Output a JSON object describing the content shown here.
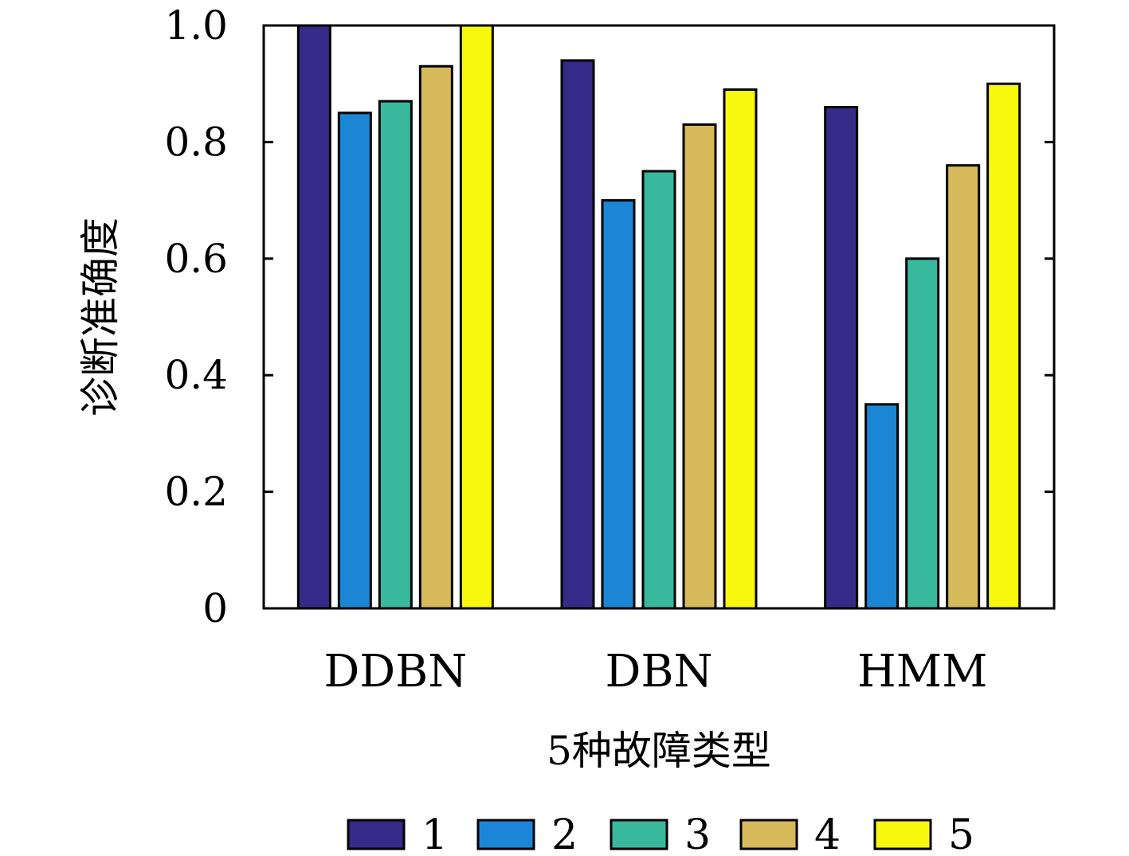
{
  "chart_data": {
    "type": "bar",
    "categories": [
      "DDBN",
      "DBN",
      "HMM"
    ],
    "series": [
      {
        "name": "1",
        "color": "#352a87",
        "values": [
          1.0,
          0.94,
          0.86
        ]
      },
      {
        "name": "2",
        "color": "#1b86d6",
        "values": [
          0.85,
          0.7,
          0.35
        ]
      },
      {
        "name": "3",
        "color": "#38b99e",
        "values": [
          0.87,
          0.75,
          0.6
        ]
      },
      {
        "name": "4",
        "color": "#d7ba5b",
        "values": [
          0.93,
          0.83,
          0.76
        ]
      },
      {
        "name": "5",
        "color": "#f8f80f",
        "values": [
          1.0,
          0.89,
          0.9
        ]
      }
    ],
    "xlabel": "5种故障类型",
    "ylabel": "诊断准确度",
    "ylim": [
      0,
      1.0
    ],
    "yticks": [
      0,
      0.2,
      0.4,
      0.6,
      0.8,
      1.0
    ],
    "ytick_labels": [
      "0",
      "0.2",
      "0.4",
      "0.6",
      "0.8",
      "1.0"
    ],
    "grid": false,
    "legend_position": "bottom"
  }
}
